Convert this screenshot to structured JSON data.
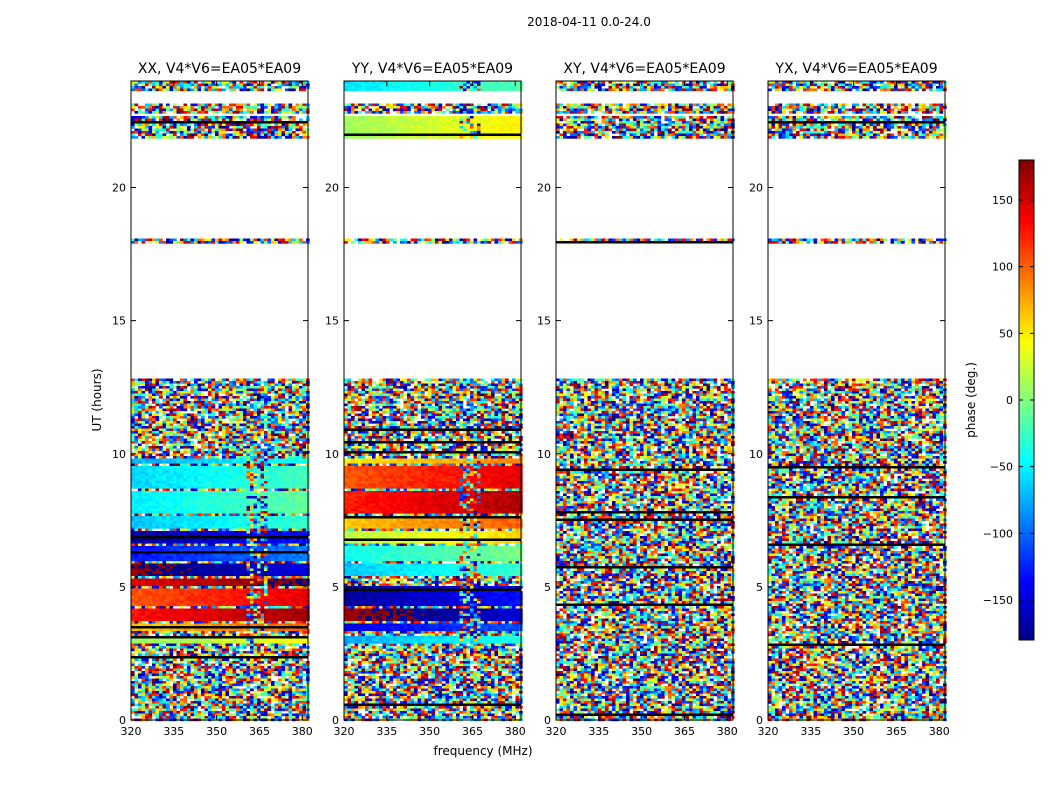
{
  "figure": {
    "suptitle": "2018-04-11 0.0-24.0"
  },
  "chart_data": {
    "type": "heatmap",
    "colormap": "jet",
    "shared": {
      "xlabel": "frequency (MHz)",
      "ylabel": "UT (hours)",
      "xlim": [
        320,
        382
      ],
      "ylim": [
        0,
        24
      ],
      "x_ticks": [
        320,
        335,
        350,
        365,
        380
      ],
      "y_ticks": [
        0,
        5,
        10,
        15,
        20
      ],
      "blank_ut_ranges_hours": [
        [
          12.8,
          17.9
        ],
        [
          18.1,
          21.8
        ],
        [
          22.7,
          22.8
        ],
        [
          23.2,
          23.6
        ]
      ]
    },
    "colorbar": {
      "label": "phase (deg.)",
      "range": [
        -180,
        180
      ],
      "ticks": [
        -150,
        -100,
        -50,
        0,
        50,
        100,
        150
      ]
    },
    "panels": [
      {
        "title": "XX, V4*V6=EA05*EA09",
        "coherent_bands": [
          {
            "ut": [
              9.6,
              9.8
            ],
            "phase": -55
          },
          {
            "ut": [
              8.7,
              9.5
            ],
            "phase": -40
          },
          {
            "ut": [
              7.8,
              8.6
            ],
            "phase": -30
          },
          {
            "ut": [
              7.2,
              7.7
            ],
            "phase": -45
          },
          {
            "ut": [
              6.6,
              7.1
            ],
            "phase": -150
          },
          {
            "ut": [
              6.0,
              6.5
            ],
            "phase": -110
          },
          {
            "ut": [
              5.4,
              5.9
            ],
            "phase": -165
          },
          {
            "ut": [
              5.0,
              5.3
            ],
            "phase": 165
          },
          {
            "ut": [
              4.3,
              4.9
            ],
            "phase": 125
          },
          {
            "ut": [
              3.7,
              4.2
            ],
            "phase": 150
          },
          {
            "ut": [
              3.3,
              3.6
            ],
            "phase": 85
          },
          {
            "ut": [
              2.9,
              3.2
            ],
            "phase": 25
          }
        ]
      },
      {
        "title": "YY, V4*V6=EA05*EA09",
        "coherent_bands": [
          {
            "ut": [
              23.4,
              24.0
            ],
            "phase": -35
          },
          {
            "ut": [
              21.8,
              22.7
            ],
            "phase": 30
          },
          {
            "ut": [
              9.6,
              9.8
            ],
            "phase": 70
          },
          {
            "ut": [
              8.7,
              9.5
            ],
            "phase": 125
          },
          {
            "ut": [
              7.8,
              8.6
            ],
            "phase": 145
          },
          {
            "ut": [
              7.2,
              7.7
            ],
            "phase": 85
          },
          {
            "ut": [
              6.6,
              7.1
            ],
            "phase": 40
          },
          {
            "ut": [
              6.0,
              6.5
            ],
            "phase": -20
          },
          {
            "ut": [
              5.4,
              5.9
            ],
            "phase": -45
          },
          {
            "ut": [
              4.3,
              5.0
            ],
            "phase": -150
          },
          {
            "ut": [
              3.7,
              4.2
            ],
            "phase": -170
          },
          {
            "ut": [
              3.3,
              3.6
            ],
            "phase": -125
          },
          {
            "ut": [
              2.9,
              3.2
            ],
            "phase": -55
          }
        ]
      },
      {
        "title": "XY, V4*V6=EA05*EA09",
        "coherent_bands": []
      },
      {
        "title": "YX, V4*V6=EA05*EA09",
        "coherent_bands": []
      }
    ]
  }
}
